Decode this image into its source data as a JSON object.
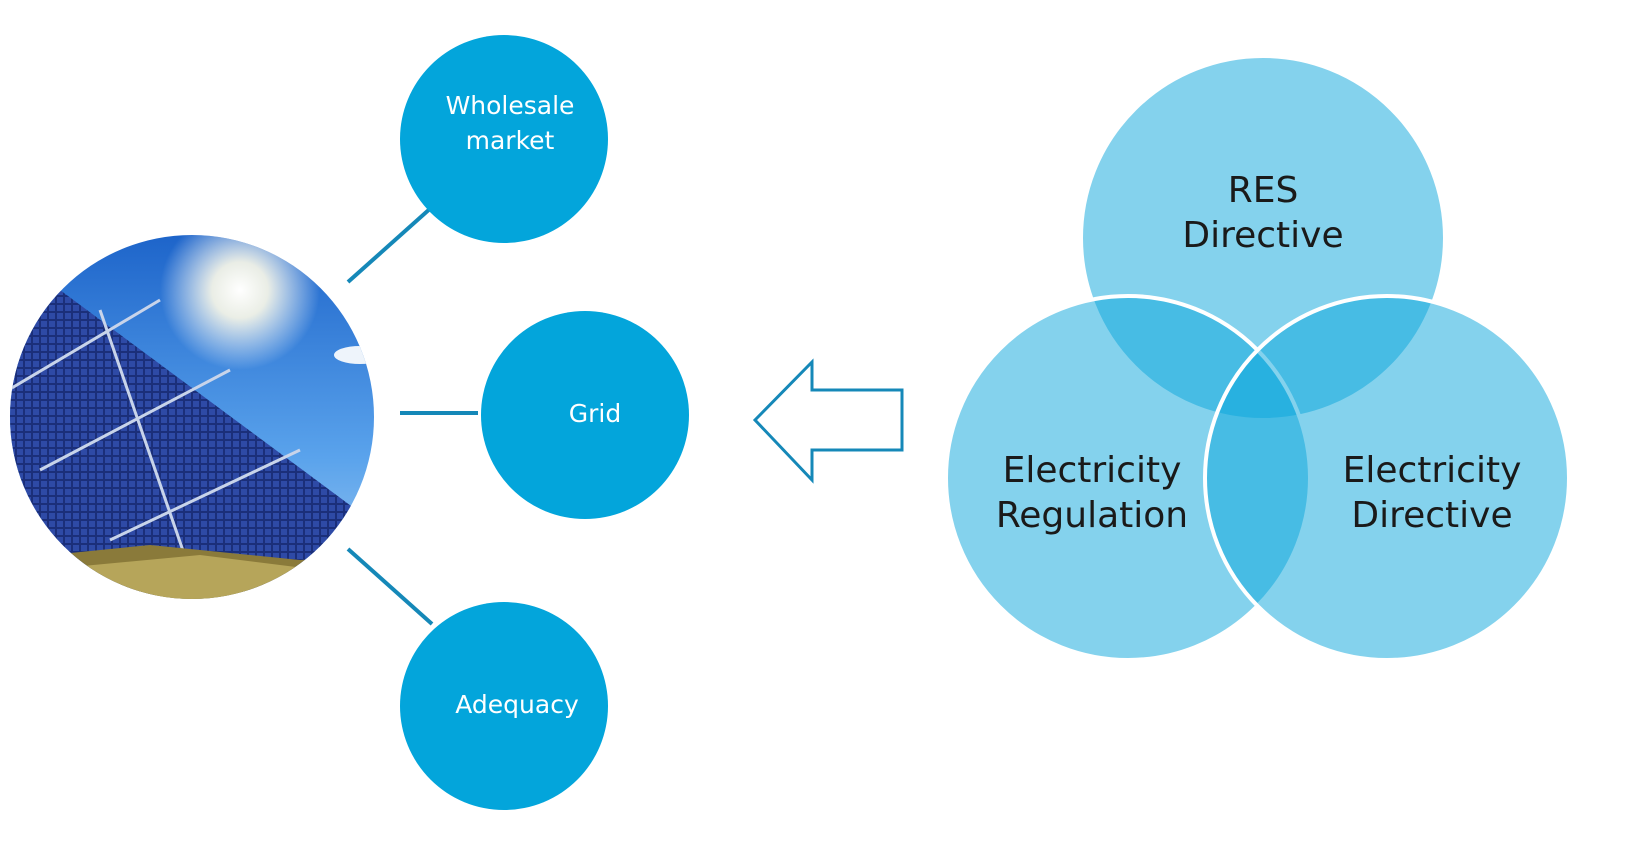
{
  "hub_nodes": [
    {
      "lines": [
        "Wholesale",
        "market"
      ]
    },
    {
      "lines": [
        "Grid"
      ]
    },
    {
      "lines": [
        "Adequacy"
      ]
    }
  ],
  "venn": [
    {
      "lines": [
        "RES",
        "Directive"
      ]
    },
    {
      "lines": [
        "Electricity",
        "Regulation"
      ]
    },
    {
      "lines": [
        "Electricity",
        "Directive"
      ]
    }
  ]
}
